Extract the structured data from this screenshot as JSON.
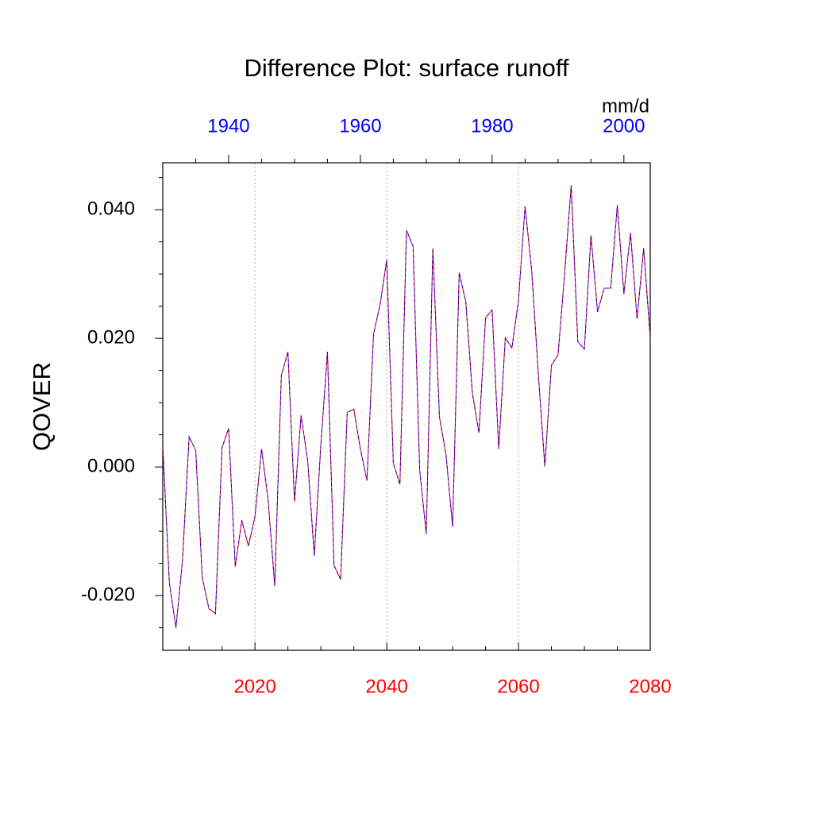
{
  "chart_data": {
    "type": "line",
    "title": "Difference Plot: surface runoff",
    "ylabel": "QOVER",
    "units": "mm/d",
    "x": [
      2006,
      2007,
      2008,
      2009,
      2010,
      2011,
      2012,
      2013,
      2014,
      2015,
      2016,
      2017,
      2018,
      2019,
      2020,
      2021,
      2022,
      2023,
      2024,
      2025,
      2026,
      2027,
      2028,
      2029,
      2030,
      2031,
      2032,
      2033,
      2034,
      2035,
      2036,
      2037,
      2038,
      2039,
      2040,
      2041,
      2042,
      2043,
      2044,
      2045,
      2046,
      2047,
      2048,
      2049,
      2050,
      2051,
      2052,
      2053,
      2054,
      2055,
      2056,
      2057,
      2058,
      2059,
      2060,
      2061,
      2062,
      2063,
      2064,
      2065,
      2066,
      2067,
      2068,
      2069,
      2070,
      2071,
      2072,
      2073,
      2074,
      2075,
      2076,
      2077,
      2078,
      2079,
      2080
    ],
    "series": [
      {
        "color": "#ff0000",
        "dash_color": "#0000ff",
        "values": [
          0.0035,
          -0.018,
          -0.025,
          -0.0145,
          0.0047,
          0.0026,
          -0.0172,
          -0.022,
          -0.0228,
          0.003,
          0.006,
          -0.0155,
          -0.0083,
          -0.0123,
          -0.0077,
          0.0028,
          -0.0052,
          -0.0185,
          0.0142,
          0.0179,
          -0.0054,
          0.008,
          0.001,
          -0.0138,
          0.0035,
          0.0179,
          -0.0153,
          -0.0175,
          0.0085,
          0.009,
          0.0028,
          -0.0021,
          0.0207,
          0.0253,
          0.0322,
          0.0006,
          -0.0027,
          0.0368,
          0.0343,
          -0.0005,
          -0.0104,
          0.034,
          0.0078,
          0.0019,
          -0.0093,
          0.0302,
          0.0257,
          0.0115,
          0.0053,
          0.0232,
          0.0244,
          0.0028,
          0.0201,
          0.0185,
          0.0259,
          0.0405,
          0.0306,
          0.0146,
          0.0001,
          0.0158,
          0.0174,
          0.03,
          0.0438,
          0.0195,
          0.0183,
          0.036,
          0.0241,
          0.0278,
          0.0278,
          0.0407,
          0.0269,
          0.0364,
          0.023,
          0.034,
          0.0201
        ]
      }
    ],
    "xlim": [
      2006,
      2080
    ],
    "xticks": [
      2020,
      2040,
      2060,
      2080
    ],
    "xminorticks": [
      2010,
      2015,
      2025,
      2030,
      2035,
      2045,
      2050,
      2055,
      2065,
      2070,
      2075
    ],
    "xtick_color": "#ff0000",
    "x2lim": [
      1930,
      2004
    ],
    "x2ticks": [
      1940,
      1960,
      1980,
      2000
    ],
    "x2minorticks": [
      1935,
      1945,
      1950,
      1955,
      1965,
      1970,
      1975,
      1985,
      1990,
      1995
    ],
    "x2tick_color": "#0000ff",
    "ylim": [
      -0.0285,
      0.0473
    ],
    "yticks": [
      {
        "value": -0.02,
        "label": "-0.020"
      },
      {
        "value": 0,
        "label": "0.000"
      },
      {
        "value": 0.02,
        "label": "0.020"
      },
      {
        "value": 0.04,
        "label": "0.040"
      }
    ],
    "yminorticks": [
      -0.025,
      -0.015,
      -0.01,
      -0.005,
      0.005,
      0.01,
      0.015,
      0.025,
      0.03,
      0.035,
      0.045
    ],
    "grid": true
  }
}
